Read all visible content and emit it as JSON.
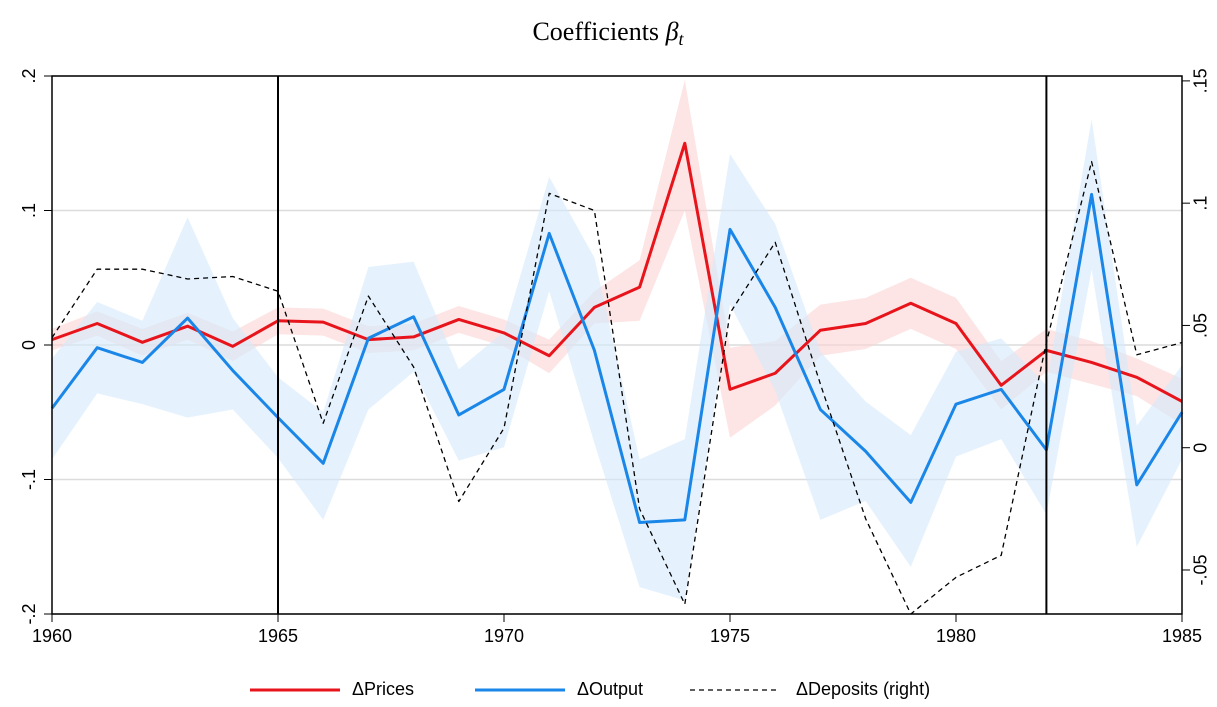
{
  "chart_data": {
    "type": "line",
    "title": "Coefficients",
    "title_symbol": "β",
    "title_subscript": "t",
    "x": [
      1960,
      1961,
      1962,
      1963,
      1964,
      1965,
      1966,
      1967,
      1968,
      1969,
      1970,
      1971,
      1972,
      1973,
      1974,
      1975,
      1976,
      1977,
      1978,
      1979,
      1980,
      1981,
      1982,
      1983,
      1984,
      1985
    ],
    "xlim": [
      1960,
      1985
    ],
    "xticks": [
      1960,
      1965,
      1970,
      1975,
      1980,
      1985
    ],
    "ylim": [
      -0.2,
      0.2
    ],
    "yticks": [
      {
        "value": 0.2,
        "label": ".2"
      },
      {
        "value": 0.1,
        "label": ".1"
      },
      0,
      {
        "value": -0.1,
        "label": "-.1"
      },
      {
        "value": -0.2,
        "label": "-.2"
      }
    ],
    "y2lim": [
      -0.068,
      0.152
    ],
    "y2ticks": [
      {
        "value": 0.15,
        "label": ".15"
      },
      {
        "value": 0.1,
        "label": ".1"
      },
      {
        "value": 0.05,
        "label": ".05"
      },
      0,
      {
        "value": -0.05,
        "label": "-.05"
      }
    ],
    "grid": true,
    "vlines": [
      1965,
      1982
    ],
    "series": [
      {
        "name": "ΔPrices",
        "color": "#e8141b",
        "band_color": "#fbd3d3",
        "values": [
          0.004,
          0.016,
          0.002,
          0.014,
          -0.001,
          0.018,
          0.017,
          0.004,
          0.006,
          0.019,
          0.009,
          -0.008,
          0.028,
          0.043,
          0.15,
          -0.033,
          -0.021,
          0.011,
          0.016,
          0.031,
          0.016,
          -0.03,
          -0.004,
          -0.013,
          -0.024,
          -0.042
        ],
        "upper": [
          0.012,
          0.025,
          0.012,
          0.024,
          0.01,
          0.028,
          0.027,
          0.014,
          0.016,
          0.029,
          0.019,
          0.004,
          0.04,
          0.063,
          0.197,
          -0.002,
          0.003,
          0.03,
          0.035,
          0.05,
          0.035,
          -0.012,
          0.012,
          0.003,
          -0.01,
          -0.025
        ],
        "lower": [
          -0.004,
          0.007,
          -0.008,
          0.004,
          -0.012,
          0.008,
          0.007,
          -0.006,
          -0.004,
          0.009,
          -0.001,
          -0.021,
          0.016,
          0.018,
          0.1,
          -0.069,
          -0.045,
          -0.008,
          -0.003,
          0.012,
          -0.003,
          -0.048,
          -0.02,
          -0.029,
          -0.038,
          -0.059
        ]
      },
      {
        "name": "ΔOutput",
        "color": "#1a86e8",
        "band_color": "#d4e9fb",
        "values": [
          -0.047,
          -0.002,
          -0.013,
          0.02,
          -0.019,
          -0.054,
          -0.088,
          0.005,
          0.021,
          -0.052,
          -0.033,
          0.083,
          -0.004,
          -0.132,
          -0.13,
          0.086,
          0.028,
          -0.048,
          -0.079,
          -0.117,
          -0.044,
          -0.033,
          -0.078,
          0.112,
          -0.104,
          -0.05
        ],
        "upper": [
          -0.01,
          0.032,
          0.018,
          0.095,
          0.02,
          -0.024,
          -0.05,
          0.058,
          0.062,
          -0.018,
          0.01,
          0.125,
          0.065,
          -0.085,
          -0.07,
          0.142,
          0.09,
          -0.005,
          -0.042,
          -0.067,
          -0.005,
          0.005,
          -0.03,
          0.168,
          -0.06,
          -0.015
        ],
        "lower": [
          -0.085,
          -0.036,
          -0.044,
          -0.054,
          -0.048,
          -0.084,
          -0.13,
          -0.048,
          -0.02,
          -0.086,
          -0.076,
          0.04,
          -0.073,
          -0.18,
          -0.19,
          0.03,
          -0.034,
          -0.13,
          -0.116,
          -0.165,
          -0.083,
          -0.07,
          -0.126,
          0.056,
          -0.15,
          -0.085
        ]
      },
      {
        "name": "ΔDeposits (right)",
        "color": "#000000",
        "axis": "y2",
        "dash": true,
        "values": [
          0.045,
          0.073,
          0.073,
          0.069,
          0.07,
          0.064,
          0.01,
          0.062,
          0.033,
          -0.022,
          0.008,
          0.104,
          0.097,
          -0.025,
          -0.064,
          0.055,
          0.084,
          0.026,
          -0.029,
          -0.068,
          -0.053,
          -0.044,
          0.043,
          0.117,
          0.038,
          0.043
        ]
      }
    ]
  }
}
